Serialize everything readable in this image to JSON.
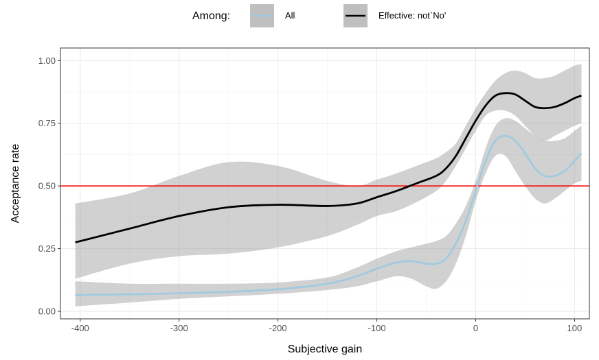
{
  "chart_data": {
    "type": "line",
    "xlabel": "Subjective gain",
    "ylabel": "Acceptance rate",
    "xlim": [
      -420,
      115
    ],
    "ylim": [
      -0.03,
      1.05
    ],
    "xticks": [
      -400,
      -300,
      -200,
      -100,
      0,
      100
    ],
    "yticks": [
      0.0,
      0.25,
      0.5,
      0.75,
      1.0
    ],
    "xtick_labels": [
      "-400",
      "-300",
      "-200",
      "-100",
      "0",
      "100"
    ],
    "ytick_labels": [
      "0.00",
      "0.25",
      "0.50",
      "0.75",
      "1.00"
    ],
    "grid": true,
    "legend": {
      "position": "top",
      "title": "Among:",
      "entries": [
        "All",
        "Effective: not`No'"
      ]
    },
    "reference_line": {
      "y": 0.5,
      "color": "#ff0000"
    },
    "series": [
      {
        "name": "All",
        "color": "#9ecae1",
        "x": [
          -405,
          -350,
          -300,
          -250,
          -200,
          -150,
          -120,
          -100,
          -80,
          -65,
          -50,
          -40,
          -30,
          -20,
          -10,
          0,
          10,
          20,
          30,
          40,
          50,
          60,
          70,
          80,
          90,
          100,
          107
        ],
        "y": [
          0.065,
          0.068,
          0.072,
          0.078,
          0.088,
          0.11,
          0.14,
          0.17,
          0.195,
          0.2,
          0.19,
          0.19,
          0.21,
          0.27,
          0.36,
          0.48,
          0.6,
          0.68,
          0.7,
          0.68,
          0.63,
          0.57,
          0.54,
          0.54,
          0.56,
          0.6,
          0.63
        ],
        "lower": [
          0.02,
          0.035,
          0.05,
          0.06,
          0.07,
          0.085,
          0.1,
          0.12,
          0.14,
          0.13,
          0.1,
          0.09,
          0.12,
          0.19,
          0.3,
          0.44,
          0.55,
          0.62,
          0.62,
          0.56,
          0.5,
          0.45,
          0.43,
          0.45,
          0.48,
          0.51,
          0.52
        ],
        "upper": [
          0.12,
          0.11,
          0.11,
          0.11,
          0.115,
          0.135,
          0.175,
          0.21,
          0.24,
          0.255,
          0.27,
          0.28,
          0.3,
          0.35,
          0.42,
          0.52,
          0.65,
          0.74,
          0.77,
          0.76,
          0.73,
          0.7,
          0.68,
          0.68,
          0.69,
          0.72,
          0.74
        ]
      },
      {
        "name": "Effective: not`No'",
        "color": "#000000",
        "x": [
          -405,
          -350,
          -300,
          -250,
          -200,
          -150,
          -120,
          -100,
          -80,
          -60,
          -40,
          -30,
          -20,
          -10,
          0,
          10,
          20,
          30,
          40,
          50,
          60,
          70,
          80,
          90,
          100,
          107
        ],
        "y": [
          0.275,
          0.33,
          0.38,
          0.415,
          0.425,
          0.42,
          0.43,
          0.455,
          0.48,
          0.51,
          0.54,
          0.57,
          0.62,
          0.69,
          0.76,
          0.82,
          0.86,
          0.87,
          0.865,
          0.84,
          0.815,
          0.81,
          0.815,
          0.83,
          0.85,
          0.86
        ],
        "lower": [
          0.13,
          0.19,
          0.22,
          0.23,
          0.255,
          0.3,
          0.345,
          0.38,
          0.4,
          0.435,
          0.48,
          0.52,
          0.58,
          0.65,
          0.72,
          0.78,
          0.8,
          0.8,
          0.78,
          0.74,
          0.7,
          0.68,
          0.7,
          0.72,
          0.74,
          0.75
        ],
        "upper": [
          0.43,
          0.47,
          0.54,
          0.595,
          0.58,
          0.52,
          0.5,
          0.525,
          0.55,
          0.58,
          0.61,
          0.635,
          0.67,
          0.74,
          0.81,
          0.87,
          0.92,
          0.95,
          0.96,
          0.95,
          0.93,
          0.93,
          0.94,
          0.96,
          0.98,
          0.985
        ]
      }
    ]
  }
}
